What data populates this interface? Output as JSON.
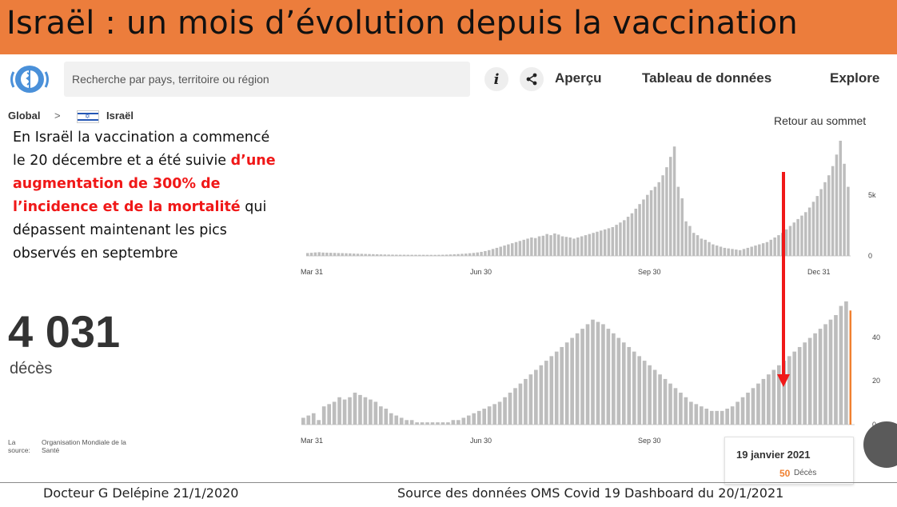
{
  "banner": {
    "title": "Israël : un mois d’évolution depuis la vaccination"
  },
  "header": {
    "search_placeholder": "Recherche par pays, territoire ou région",
    "nav": [
      "Aperçu",
      "Tableau de données",
      "Explore"
    ]
  },
  "breadcrumb": {
    "global": "Global",
    "sep": ">",
    "country": "Israël"
  },
  "retour": "Retour au sommet",
  "overlay": {
    "line1": "En Israël la vaccination a commencé",
    "line2a": "le 20 décembre et a été suivie ",
    "line2b": "d’une",
    "line3": "augmentation de 300% de",
    "line4": "l’incidence et de  la mortalité",
    "line4b": " qui",
    "line5": "dépassent maintenant les pics",
    "line6": "observés en septembre"
  },
  "deaths": {
    "value": "4 031",
    "label": "décès"
  },
  "source_small": {
    "label": "La source:",
    "org": "Organisation Mondiale de la Santé"
  },
  "tooltip": {
    "date": "19 janvier 2021",
    "value": "50",
    "label": "Décès"
  },
  "footer": {
    "left": "Docteur G Delépine 21/1/2020",
    "right": "Source des données OMS Covid 19 Dashboard du 20/1/2021"
  },
  "colors": {
    "banner": "#ec7d3c",
    "bars": "#bdbdbd",
    "arrow": "#f01818",
    "highlight": "#f08030"
  },
  "chart_data": [
    {
      "type": "bar",
      "title": "",
      "x_ticks": [
        "Mar 31",
        "Jun 30",
        "Sep 30",
        "Dec 31"
      ],
      "y_ticks": [
        "0",
        "5k"
      ],
      "ylim": [
        0,
        10000
      ],
      "values": [
        250,
        270,
        300,
        320,
        290,
        280,
        270,
        260,
        250,
        240,
        230,
        220,
        200,
        190,
        180,
        170,
        160,
        150,
        140,
        130,
        120,
        115,
        110,
        105,
        100,
        100,
        98,
        96,
        95,
        94,
        93,
        92,
        91,
        90,
        95,
        100,
        110,
        125,
        140,
        160,
        180,
        200,
        230,
        260,
        300,
        350,
        420,
        500,
        600,
        700,
        800,
        900,
        1000,
        1100,
        1200,
        1300,
        1400,
        1500,
        1600,
        1550,
        1700,
        1750,
        1900,
        1800,
        1950,
        1850,
        1700,
        1650,
        1600,
        1500,
        1600,
        1700,
        1800,
        1900,
        2000,
        2100,
        2200,
        2300,
        2400,
        2500,
        2700,
        2900,
        3100,
        3400,
        3700,
        4100,
        4500,
        4900,
        5300,
        5700,
        6000,
        6400,
        7000,
        7700,
        8600,
        9500,
        6000,
        5000,
        3000,
        2600,
        2000,
        1800,
        1500,
        1400,
        1200,
        1000,
        900,
        800,
        700,
        650,
        600,
        550,
        500,
        600,
        700,
        800,
        900,
        1000,
        1100,
        1200,
        1400,
        1600,
        1800,
        2000,
        2300,
        2600,
        2900,
        3200,
        3500,
        3800,
        4200,
        4700,
        5200,
        5800,
        6400,
        7000,
        7800,
        8800,
        10000,
        8000,
        6000
      ]
    },
    {
      "type": "bar",
      "title": "",
      "x_ticks": [
        "Mar 31",
        "Jun 30",
        "Sep 30"
      ],
      "y_ticks": [
        "0",
        "20",
        "40"
      ],
      "ylim": [
        0,
        55
      ],
      "values": [
        3,
        4,
        5,
        2,
        8,
        9,
        10,
        12,
        11,
        12,
        14,
        13,
        12,
        11,
        10,
        8,
        7,
        5,
        4,
        3,
        2,
        2,
        1,
        1,
        1,
        1,
        1,
        1,
        1,
        2,
        2,
        3,
        4,
        5,
        6,
        7,
        8,
        9,
        10,
        12,
        14,
        16,
        18,
        20,
        22,
        24,
        26,
        28,
        30,
        32,
        34,
        36,
        38,
        40,
        42,
        44,
        46,
        45,
        44,
        42,
        40,
        38,
        36,
        34,
        32,
        30,
        28,
        26,
        24,
        22,
        20,
        18,
        16,
        14,
        12,
        10,
        9,
        8,
        7,
        6,
        6,
        6,
        7,
        8,
        10,
        12,
        14,
        16,
        18,
        20,
        22,
        24,
        26,
        28,
        30,
        32,
        34,
        36,
        38,
        40,
        42,
        44,
        46,
        48,
        52,
        54,
        50
      ]
    }
  ]
}
